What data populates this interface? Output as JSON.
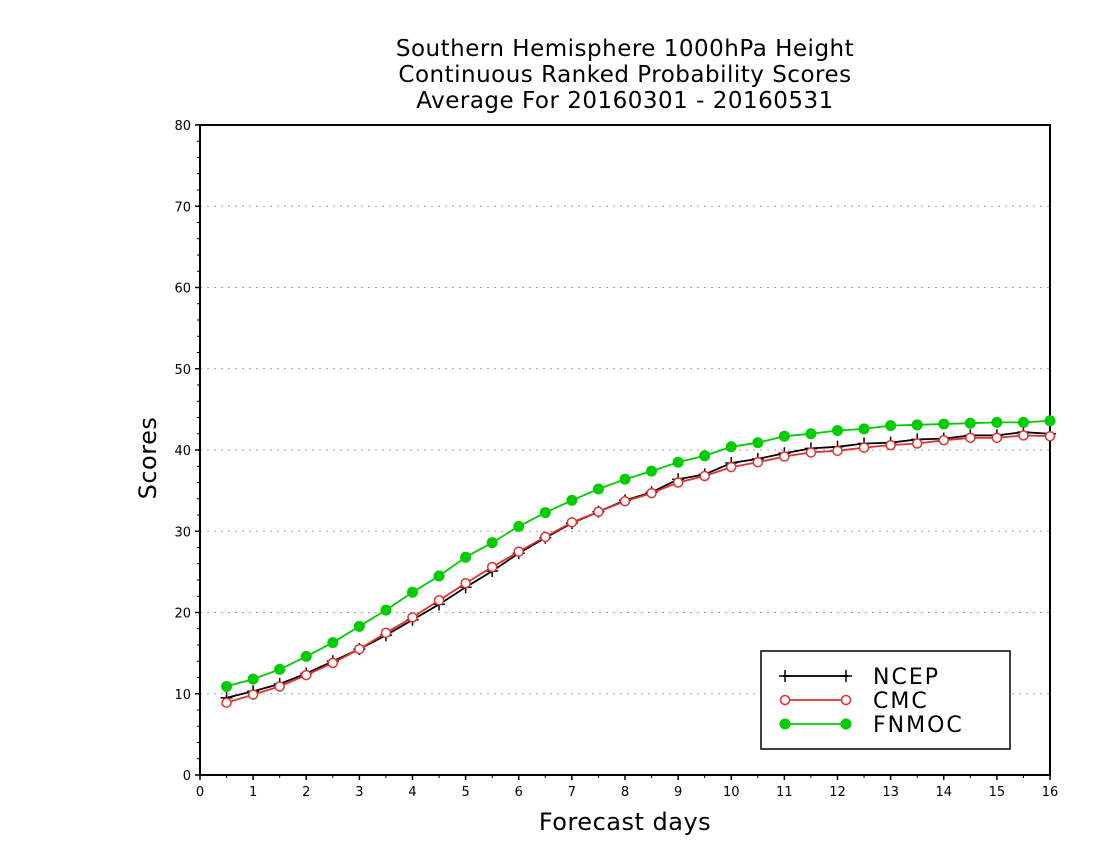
{
  "chart_data": {
    "type": "line",
    "title": [
      "Southern Hemisphere 1000hPa Height",
      "Continuous Ranked Probability Scores",
      "Average For 20160301 - 20160531"
    ],
    "xlabel": "Forecast days",
    "ylabel": "Scores",
    "xlim": [
      0,
      16
    ],
    "ylim": [
      0,
      80
    ],
    "xticks": [
      "0",
      "1",
      "2",
      "3",
      "4",
      "5",
      "6",
      "7",
      "8",
      "9",
      "10",
      "11",
      "12",
      "13",
      "14",
      "15",
      "16"
    ],
    "yticks": [
      "0",
      "10",
      "20",
      "30",
      "40",
      "50",
      "60",
      "70",
      "80"
    ],
    "grid": "horizontal dotted",
    "legend_position": "bottom-right",
    "x": [
      0.5,
      1,
      1.5,
      2,
      2.5,
      3,
      3.5,
      4,
      4.5,
      5,
      5.5,
      6,
      6.5,
      7,
      7.5,
      8,
      8.5,
      9,
      9.5,
      10,
      10.5,
      11,
      11.5,
      12,
      12.5,
      13,
      13.5,
      14,
      14.5,
      15,
      15.5,
      16
    ],
    "series": [
      {
        "name": "NCEP",
        "color": "#000000",
        "marker": "plus",
        "values": [
          9.5,
          10.3,
          11.2,
          12.5,
          14.0,
          15.5,
          17.2,
          19.1,
          21.0,
          23.1,
          25.1,
          27.3,
          29.2,
          31.0,
          32.4,
          33.8,
          34.8,
          36.4,
          37.0,
          38.4,
          38.9,
          39.6,
          40.2,
          40.4,
          40.8,
          40.9,
          41.3,
          41.4,
          41.8,
          41.8,
          42.2,
          42.0
        ]
      },
      {
        "name": "CMC",
        "color": "#e03030",
        "marker": "open-circle",
        "values": [
          8.9,
          9.9,
          10.9,
          12.3,
          13.8,
          15.5,
          17.5,
          19.4,
          21.5,
          23.6,
          25.6,
          27.5,
          29.3,
          31.1,
          32.4,
          33.7,
          34.7,
          36.0,
          36.8,
          37.9,
          38.5,
          39.2,
          39.7,
          39.9,
          40.3,
          40.6,
          40.8,
          41.2,
          41.5,
          41.5,
          41.8,
          41.7
        ]
      },
      {
        "name": "FNMOC",
        "color": "#00cc00",
        "marker": "filled-circle",
        "values": [
          10.9,
          11.8,
          13.0,
          14.6,
          16.3,
          18.3,
          20.3,
          22.5,
          24.5,
          26.8,
          28.6,
          30.6,
          32.3,
          33.8,
          35.2,
          36.4,
          37.4,
          38.5,
          39.3,
          40.4,
          40.9,
          41.7,
          42.0,
          42.4,
          42.6,
          43.0,
          43.1,
          43.2,
          43.3,
          43.4,
          43.4,
          43.6
        ]
      }
    ]
  }
}
